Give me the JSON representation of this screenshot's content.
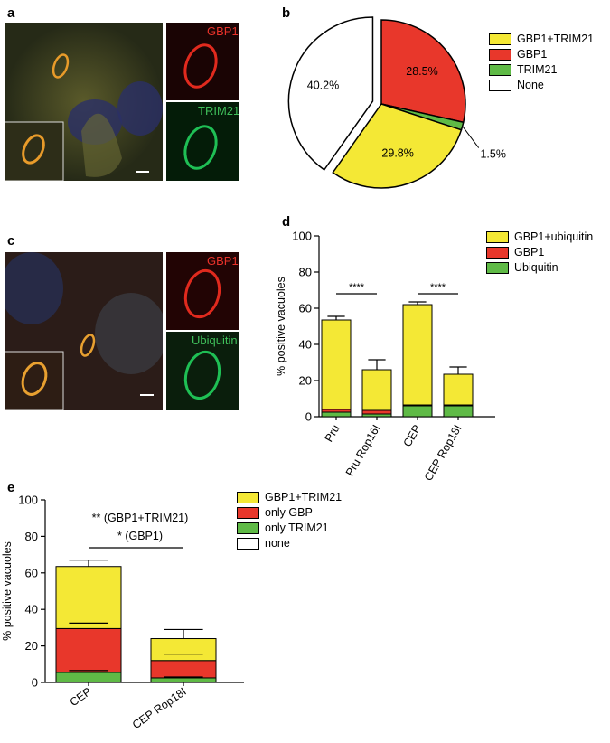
{
  "panels": {
    "a": {
      "letter": "a",
      "channel_labels": [
        "GBP1",
        "TRIM21"
      ],
      "channel_colors": [
        "#e8322a",
        "#3fbf5a"
      ]
    },
    "b": {
      "letter": "b"
    },
    "c": {
      "letter": "c",
      "channel_labels": [
        "GBP1",
        "Ubiquitin"
      ],
      "channel_colors": [
        "#e8322a",
        "#3fbf5a"
      ]
    },
    "d": {
      "letter": "d"
    },
    "e": {
      "letter": "e"
    }
  },
  "colors": {
    "yellow": "#f4e835",
    "red": "#e8372b",
    "green": "#5fba46",
    "white": "#ffffff"
  },
  "chart_data": [
    {
      "panel": "b",
      "type": "pie",
      "legend": [
        "GBP1+TRIM21",
        "GBP1",
        "TRIM21",
        "None"
      ],
      "slices": [
        {
          "name": "GBP1",
          "value": 28.5,
          "label": "28.5%",
          "color": "#e8372b"
        },
        {
          "name": "TRIM21",
          "value": 1.5,
          "label": "1.5%",
          "color": "#5fba46"
        },
        {
          "name": "GBP1+TRIM21",
          "value": 29.8,
          "label": "29.8%",
          "color": "#f4e835"
        },
        {
          "name": "None",
          "value": 40.2,
          "label": "40.2%",
          "color": "#ffffff"
        }
      ]
    },
    {
      "panel": "d",
      "type": "bar",
      "stacked": true,
      "ylabel": "% positive vacuoles",
      "ylim": [
        0,
        100
      ],
      "yticks": [
        "0",
        "20",
        "40",
        "60",
        "80",
        "100"
      ],
      "categories": [
        "Pru",
        "Pru Rop16I",
        "CEP",
        "CEP Rop18I"
      ],
      "legend": [
        "GBP1+ubiquitin",
        "GBP1",
        "Ubiquitin"
      ],
      "series": [
        {
          "name": "Ubiquitin",
          "color": "#5fba46",
          "values": [
            2.5,
            1.5,
            6,
            6
          ]
        },
        {
          "name": "GBP1",
          "color": "#e8372b",
          "values": [
            1.5,
            2,
            0.5,
            0.5
          ]
        },
        {
          "name": "GBP1+ubiquitin",
          "color": "#f4e835",
          "values": [
            49.5,
            22.5,
            55.5,
            17
          ]
        }
      ],
      "error_tops": [
        55.5,
        31.5,
        63.5,
        27.5
      ],
      "significance": [
        {
          "from": 0,
          "to": 1,
          "label": "****"
        },
        {
          "from": 2,
          "to": 3,
          "label": "****"
        }
      ]
    },
    {
      "panel": "e",
      "type": "bar",
      "stacked": true,
      "ylabel": "% positive vacuoles",
      "ylim": [
        0,
        100
      ],
      "yticks": [
        "0",
        "20",
        "40",
        "60",
        "80",
        "100"
      ],
      "categories": [
        "CEP",
        "CEP Rop18I"
      ],
      "legend": [
        "GBP1+TRIM21",
        "only GBP",
        "only TRIM21",
        "none"
      ],
      "series": [
        {
          "name": "only TRIM21",
          "color": "#5fba46",
          "values": [
            5.5,
            2.5
          ]
        },
        {
          "name": "only GBP",
          "color": "#e8372b",
          "values": [
            24,
            9.5
          ]
        },
        {
          "name": "GBP1+TRIM21",
          "color": "#f4e835",
          "values": [
            34,
            12
          ]
        }
      ],
      "error_tops": [
        67,
        29
      ],
      "inner_errors": [
        [
          32.5,
          6.5
        ],
        [
          15.5,
          3
        ]
      ],
      "annotations": [
        "** (GBP1+TRIM21)",
        "* (GBP1)"
      ]
    }
  ]
}
